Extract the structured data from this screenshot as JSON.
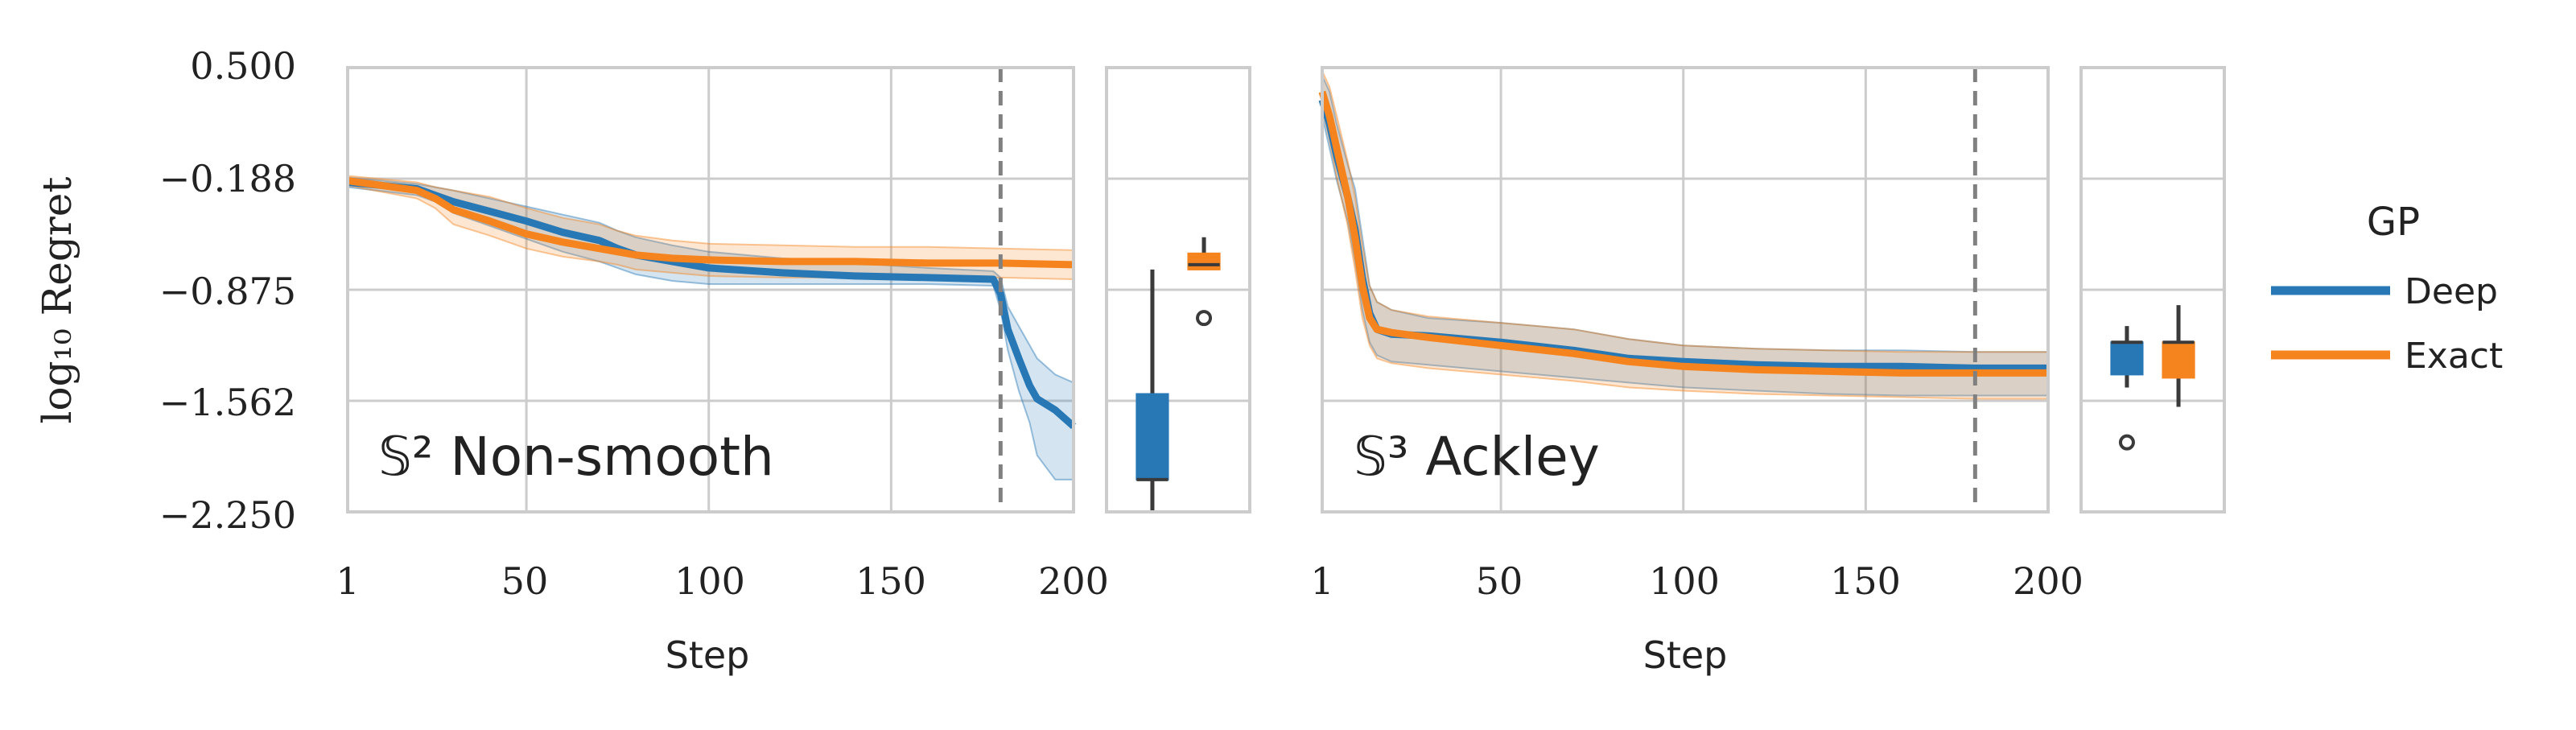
{
  "legend": {
    "title": "GP",
    "entries": [
      {
        "label": "Deep",
        "color": "#2878b5"
      },
      {
        "label": "Exact",
        "color": "#f5841e"
      }
    ]
  },
  "colors": {
    "deep": "#2878b5",
    "exact": "#f5841e",
    "grid": "#cccccc",
    "vline": "#808080",
    "whisker": "#3a3a3a"
  },
  "chart_data": [
    {
      "type": "line",
      "annotation": "𝕊² Non-smooth",
      "xlabel": "Step",
      "ylabel": "log₁₀ Regret",
      "xlim": [
        1,
        200
      ],
      "ylim": [
        -2.25,
        0.5
      ],
      "xticks": [
        "1",
        "50",
        "100",
        "150",
        "200"
      ],
      "yticks": [
        "0.500",
        "−0.188",
        "−0.875",
        "−1.562",
        "−2.250"
      ],
      "vline_x": 180,
      "series": [
        {
          "name": "Deep",
          "x": [
            1,
            20,
            25,
            30,
            40,
            50,
            60,
            70,
            75,
            80,
            90,
            100,
            120,
            140,
            160,
            178,
            180,
            182,
            185,
            188,
            190,
            195,
            200
          ],
          "y": [
            -0.21,
            -0.25,
            -0.29,
            -0.33,
            -0.39,
            -0.45,
            -0.52,
            -0.57,
            -0.62,
            -0.66,
            -0.7,
            -0.74,
            -0.77,
            -0.79,
            -0.8,
            -0.81,
            -0.9,
            -1.12,
            -1.3,
            -1.47,
            -1.55,
            -1.62,
            -1.72
          ],
          "lower": [
            -0.24,
            -0.29,
            -0.33,
            -0.4,
            -0.48,
            -0.56,
            -0.64,
            -0.7,
            -0.74,
            -0.78,
            -0.82,
            -0.84,
            -0.84,
            -0.84,
            -0.84,
            -0.85,
            -1.0,
            -1.25,
            -1.5,
            -1.7,
            -1.9,
            -2.05,
            -2.05
          ],
          "upper": [
            -0.18,
            -0.22,
            -0.24,
            -0.26,
            -0.31,
            -0.36,
            -0.41,
            -0.46,
            -0.51,
            -0.55,
            -0.6,
            -0.64,
            -0.68,
            -0.71,
            -0.74,
            -0.76,
            -0.8,
            -0.98,
            -1.1,
            -1.22,
            -1.3,
            -1.4,
            -1.45
          ]
        },
        {
          "name": "Exact",
          "x": [
            1,
            20,
            25,
            30,
            40,
            50,
            60,
            70,
            75,
            80,
            90,
            100,
            120,
            140,
            160,
            180,
            200
          ],
          "y": [
            -0.2,
            -0.26,
            -0.31,
            -0.38,
            -0.45,
            -0.53,
            -0.58,
            -0.62,
            -0.64,
            -0.66,
            -0.68,
            -0.69,
            -0.7,
            -0.7,
            -0.71,
            -0.71,
            -0.72
          ],
          "lower": [
            -0.23,
            -0.31,
            -0.37,
            -0.47,
            -0.54,
            -0.62,
            -0.67,
            -0.7,
            -0.72,
            -0.75,
            -0.77,
            -0.79,
            -0.8,
            -0.8,
            -0.8,
            -0.8,
            -0.81
          ],
          "upper": [
            -0.17,
            -0.21,
            -0.24,
            -0.26,
            -0.3,
            -0.37,
            -0.43,
            -0.47,
            -0.51,
            -0.54,
            -0.57,
            -0.59,
            -0.6,
            -0.61,
            -0.61,
            -0.62,
            -0.63
          ]
        }
      ]
    },
    {
      "type": "box",
      "series": [
        {
          "name": "Deep",
          "whisker": [
            -2.25,
            -0.75
          ],
          "box": [
            -2.05,
            -1.52
          ],
          "median": -2.05,
          "outliers": []
        },
        {
          "name": "Exact",
          "whisker": [
            -0.72,
            -0.55
          ],
          "box": [
            -0.75,
            -0.65
          ],
          "median": -0.72,
          "outliers": [
            -1.05
          ]
        }
      ]
    },
    {
      "type": "line",
      "annotation": "𝕊³ Ackley",
      "xlabel": "Step",
      "ylabel": "",
      "xlim": [
        1,
        200
      ],
      "ylim": [
        -2.25,
        0.5
      ],
      "xticks": [
        "1",
        "50",
        "100",
        "150",
        "200"
      ],
      "yticks": [],
      "vline_x": 180,
      "series": [
        {
          "name": "Deep",
          "x": [
            1,
            3,
            5,
            8,
            10,
            12,
            14,
            16,
            20,
            30,
            50,
            70,
            85,
            100,
            120,
            140,
            160,
            180,
            200
          ],
          "y": [
            0.3,
            0.15,
            -0.05,
            -0.3,
            -0.5,
            -0.8,
            -1.02,
            -1.12,
            -1.15,
            -1.16,
            -1.2,
            -1.25,
            -1.3,
            -1.32,
            -1.34,
            -1.35,
            -1.35,
            -1.36,
            -1.36
          ],
          "lower": [
            0.2,
            0.0,
            -0.2,
            -0.45,
            -0.7,
            -1.0,
            -1.2,
            -1.28,
            -1.32,
            -1.34,
            -1.38,
            -1.42,
            -1.45,
            -1.48,
            -1.5,
            -1.52,
            -1.53,
            -1.53,
            -1.53
          ],
          "upper": [
            0.45,
            0.35,
            0.15,
            -0.1,
            -0.25,
            -0.55,
            -0.85,
            -0.95,
            -1.0,
            -1.05,
            -1.08,
            -1.12,
            -1.18,
            -1.22,
            -1.24,
            -1.25,
            -1.25,
            -1.26,
            -1.26
          ]
        },
        {
          "name": "Exact",
          "x": [
            1,
            3,
            5,
            8,
            10,
            12,
            14,
            16,
            20,
            30,
            50,
            70,
            85,
            100,
            120,
            140,
            160,
            180,
            200
          ],
          "y": [
            0.35,
            0.2,
            0.0,
            -0.3,
            -0.55,
            -0.85,
            -1.05,
            -1.12,
            -1.14,
            -1.17,
            -1.22,
            -1.27,
            -1.32,
            -1.35,
            -1.37,
            -1.38,
            -1.39,
            -1.39,
            -1.39
          ],
          "lower": [
            0.25,
            0.05,
            -0.18,
            -0.48,
            -0.75,
            -1.05,
            -1.22,
            -1.3,
            -1.33,
            -1.36,
            -1.4,
            -1.44,
            -1.48,
            -1.5,
            -1.52,
            -1.53,
            -1.54,
            -1.55,
            -1.55
          ],
          "upper": [
            0.48,
            0.38,
            0.2,
            -0.08,
            -0.3,
            -0.6,
            -0.85,
            -0.95,
            -1.0,
            -1.04,
            -1.08,
            -1.12,
            -1.18,
            -1.22,
            -1.24,
            -1.25,
            -1.26,
            -1.26,
            -1.26
          ]
        }
      ]
    },
    {
      "type": "box",
      "series": [
        {
          "name": "Deep",
          "whisker": [
            -1.48,
            -1.1
          ],
          "box": [
            -1.4,
            -1.2
          ],
          "median": -1.2,
          "outliers": [
            -1.82
          ]
        },
        {
          "name": "Exact",
          "whisker": [
            -1.6,
            -0.97
          ],
          "box": [
            -1.42,
            -1.2
          ],
          "median": -1.2,
          "outliers": []
        }
      ]
    }
  ]
}
